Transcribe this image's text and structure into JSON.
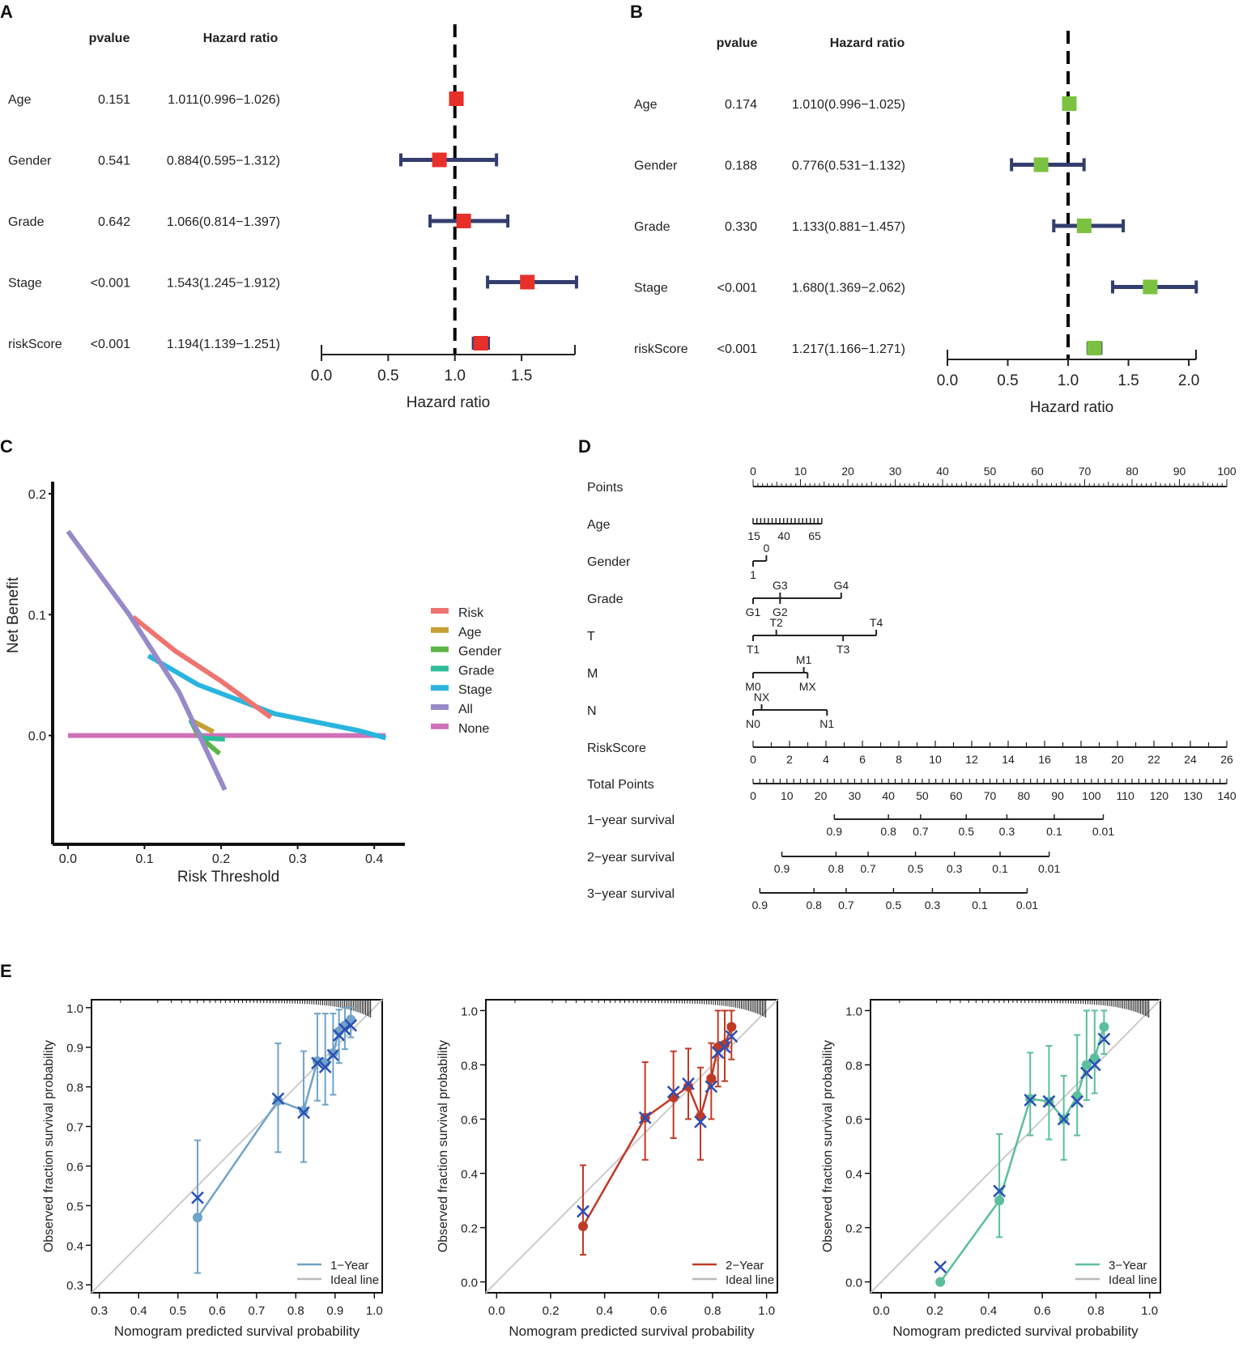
{
  "panels": {
    "a": "A",
    "b": "B",
    "c": "C",
    "d": "D",
    "e": "E"
  },
  "colors": {
    "errorbar": "#333d6e",
    "forest_a": "#e8302b",
    "forest_b": "#7cc242",
    "ideal": "#cccccc",
    "refline": "#000000"
  },
  "forest_headers": {
    "pvalue": "pvalue",
    "hr": "Hazard ratio"
  },
  "chart_data": [
    {
      "id": "A",
      "type": "forest",
      "xlabel": "Hazard ratio",
      "xlim": [
        0,
        1.9
      ],
      "xticks": [
        0.0,
        0.5,
        1.0,
        1.5
      ],
      "xtick_labels": [
        "0.0",
        "0.5",
        "1.0",
        "1.5"
      ],
      "rows": [
        {
          "label": "Age",
          "pvalue": "0.151",
          "hr_text": "1.011(0.996−1.026)",
          "hr": 1.011,
          "lo": 0.996,
          "hi": 1.026
        },
        {
          "label": "Gender",
          "pvalue": "0.541",
          "hr_text": "0.884(0.595−1.312)",
          "hr": 0.884,
          "lo": 0.595,
          "hi": 1.312
        },
        {
          "label": "Grade",
          "pvalue": "0.642",
          "hr_text": "1.066(0.814−1.397)",
          "hr": 1.066,
          "lo": 0.814,
          "hi": 1.397
        },
        {
          "label": "Stage",
          "pvalue": "<0.001",
          "hr_text": "1.543(1.245−1.912)",
          "hr": 1.543,
          "lo": 1.245,
          "hi": 1.912
        },
        {
          "label": "riskScore",
          "pvalue": "<0.001",
          "hr_text": "1.194(1.139−1.251)",
          "hr": 1.194,
          "lo": 1.139,
          "hi": 1.251
        }
      ]
    },
    {
      "id": "B",
      "type": "forest",
      "xlabel": "Hazard ratio",
      "xlim": [
        0,
        2.06
      ],
      "xticks": [
        0.0,
        0.5,
        1.0,
        1.5,
        2.0
      ],
      "xtick_labels": [
        "0.0",
        "0.5",
        "1.0",
        "1.5",
        "2.0"
      ],
      "rows": [
        {
          "label": "Age",
          "pvalue": "0.174",
          "hr_text": "1.010(0.996−1.025)",
          "hr": 1.01,
          "lo": 0.996,
          "hi": 1.025
        },
        {
          "label": "Gender",
          "pvalue": "0.188",
          "hr_text": "0.776(0.531−1.132)",
          "hr": 0.776,
          "lo": 0.531,
          "hi": 1.132
        },
        {
          "label": "Grade",
          "pvalue": "0.330",
          "hr_text": "1.133(0.881−1.457)",
          "hr": 1.133,
          "lo": 0.881,
          "hi": 1.457
        },
        {
          "label": "Stage",
          "pvalue": "<0.001",
          "hr_text": "1.680(1.369−2.062)",
          "hr": 1.68,
          "lo": 1.369,
          "hi": 2.062
        },
        {
          "label": "riskScore",
          "pvalue": "<0.001",
          "hr_text": "1.217(1.166−1.271)",
          "hr": 1.217,
          "lo": 1.166,
          "hi": 1.271
        }
      ]
    },
    {
      "id": "C",
      "type": "line",
      "title": "",
      "xlabel": "Risk Threshold",
      "ylabel": "Net Benefit",
      "xlim": [
        -0.02,
        0.44
      ],
      "ylim": [
        -0.09,
        0.21
      ],
      "xticks": [
        0.0,
        0.1,
        0.2,
        0.3,
        0.4
      ],
      "xtick_labels": [
        "0.0",
        "0.1",
        "0.2",
        "0.3",
        "0.4"
      ],
      "yticks": [
        0.0,
        0.1,
        0.2
      ],
      "ytick_labels": [
        "0.0",
        "0.1",
        "0.2"
      ],
      "series": [
        {
          "name": "Risk",
          "color": "#ef7470",
          "points": [
            [
              0.085,
              0.098
            ],
            [
              0.14,
              0.07
            ],
            [
              0.2,
              0.045
            ],
            [
              0.265,
              0.015
            ]
          ]
        },
        {
          "name": "Age",
          "color": "#c6a135",
          "points": [
            [
              0.16,
              0.013
            ],
            [
              0.19,
              0.003
            ]
          ]
        },
        {
          "name": "Gender",
          "color": "#5cb545",
          "points": [
            [
              0.16,
              0.013
            ],
            [
              0.17,
              0.0
            ],
            [
              0.198,
              -0.015
            ]
          ]
        },
        {
          "name": "Grade",
          "color": "#2dbd99",
          "points": [
            [
              0.16,
              0.013
            ],
            [
              0.175,
              -0.002
            ],
            [
              0.205,
              -0.003
            ]
          ]
        },
        {
          "name": "Stage",
          "color": "#29b5df",
          "points": [
            [
              0.105,
              0.066
            ],
            [
              0.17,
              0.042
            ],
            [
              0.27,
              0.018
            ],
            [
              0.38,
              0.004
            ],
            [
              0.415,
              -0.002
            ]
          ]
        },
        {
          "name": "All",
          "color": "#9889c8",
          "points": [
            [
              0.0,
              0.169
            ],
            [
              0.08,
              0.1
            ],
            [
              0.145,
              0.036
            ],
            [
              0.205,
              -0.045
            ]
          ]
        },
        {
          "name": "None",
          "color": "#cf72b8",
          "points": [
            [
              0.0,
              0.0
            ],
            [
              0.415,
              0.0
            ]
          ]
        }
      ]
    },
    {
      "id": "D",
      "type": "nomogram",
      "rows": [
        {
          "label": "Points",
          "scale_min": 0,
          "scale_max": 100,
          "labels": [
            "0",
            "10",
            "20",
            "30",
            "40",
            "50",
            "60",
            "70",
            "80",
            "90",
            "100"
          ],
          "values": [
            0,
            10,
            20,
            30,
            40,
            50,
            60,
            70,
            80,
            90,
            100
          ]
        },
        {
          "label": "Age",
          "labels": [
            "15",
            "40",
            "65"
          ],
          "values": [
            0,
            6.5,
            13
          ],
          "range": [
            0,
            14.5
          ]
        },
        {
          "label": "Gender",
          "labels": [
            "0",
            "1"
          ],
          "values": [
            2.8,
            0
          ],
          "range": [
            0,
            2.8
          ]
        },
        {
          "label": "Grade",
          "labels": [
            "G3",
            "G4",
            "G1",
            "G2"
          ],
          "values": [
            5.7,
            18.6,
            0,
            5.7
          ],
          "range": [
            0,
            18.6
          ]
        },
        {
          "label": "T",
          "labels": [
            "T2",
            "T4",
            "T1",
            "T3"
          ],
          "values": [
            4.9,
            26,
            0,
            19
          ],
          "range": [
            0,
            26
          ]
        },
        {
          "label": "M",
          "labels": [
            "M1",
            "M0",
            "MX"
          ],
          "values": [
            10.7,
            0,
            11.5
          ],
          "range": [
            0,
            11.5
          ]
        },
        {
          "label": "N",
          "labels": [
            "NX",
            "N0",
            "N1"
          ],
          "values": [
            1.8,
            0,
            15.6
          ],
          "range": [
            0,
            15.6
          ]
        },
        {
          "label": "RiskScore",
          "labels": [
            "0",
            "2",
            "4",
            "6",
            "8",
            "10",
            "12",
            "14",
            "16",
            "18",
            "20",
            "22",
            "24",
            "26"
          ],
          "scale_min": 0,
          "scale_max": 26
        },
        {
          "label": "Total Points",
          "labels": [
            "0",
            "10",
            "20",
            "30",
            "40",
            "50",
            "60",
            "70",
            "80",
            "90",
            "100",
            "110",
            "120",
            "130",
            "140"
          ],
          "scale_min": 0,
          "scale_max": 140
        },
        {
          "label": "1−year survival",
          "labels": [
            "0.9",
            "0.8",
            "0.7",
            "0.5",
            "0.3",
            "0.1",
            "0.01"
          ],
          "positions_total": [
            24,
            40,
            49.5,
            63,
            75,
            89,
            103.5
          ]
        },
        {
          "label": "2−year survival",
          "labels": [
            "0.9",
            "0.8",
            "0.7",
            "0.5",
            "0.3",
            "0.1",
            "0.01"
          ],
          "positions_total": [
            8.5,
            24.5,
            34,
            48,
            59.5,
            73,
            87.5
          ]
        },
        {
          "label": "3−year survival",
          "labels": [
            "0.9",
            "0.8",
            "0.7",
            "0.5",
            "0.3",
            "0.1",
            "0.01"
          ],
          "positions_total": [
            2,
            18,
            27.5,
            41.5,
            53,
            67,
            81
          ]
        }
      ]
    },
    {
      "id": "E1",
      "type": "calibration",
      "legend": "1−Year",
      "ideal_label": "Ideal line",
      "color": "#6fa3c8",
      "xlabel": "Nomogram predicted survival probability",
      "ylabel": "Observed fraction survival probability",
      "xlim": [
        0.28,
        1.02
      ],
      "ylim": [
        0.28,
        1.02
      ],
      "xticks": [
        0.3,
        0.4,
        0.5,
        0.6,
        0.7,
        0.8,
        0.9,
        1.0
      ],
      "xtick_labels": [
        "0.3",
        "0.4",
        "0.5",
        "0.6",
        "0.7",
        "0.8",
        "0.9",
        "1.0"
      ],
      "yticks": [
        0.3,
        0.4,
        0.5,
        0.6,
        0.7,
        0.8,
        0.9,
        1.0
      ],
      "ytick_labels": [
        "0.3",
        "0.4",
        "0.5",
        "0.6",
        "0.7",
        "0.8",
        "0.9",
        "1.0"
      ],
      "points": [
        {
          "x": 0.55,
          "y": 0.47,
          "lo": 0.33,
          "hi": 0.665,
          "xc": 0.52
        },
        {
          "x": 0.755,
          "y": 0.765,
          "lo": 0.635,
          "hi": 0.91,
          "xc": 0.77
        },
        {
          "x": 0.82,
          "y": 0.74,
          "lo": 0.61,
          "hi": 0.89,
          "xc": 0.735
        },
        {
          "x": 0.855,
          "y": 0.865,
          "lo": 0.765,
          "hi": 0.985,
          "xc": 0.86
        },
        {
          "x": 0.875,
          "y": 0.86,
          "lo": 0.755,
          "hi": 0.985,
          "xc": 0.85
        },
        {
          "x": 0.895,
          "y": 0.885,
          "lo": 0.78,
          "hi": 0.985,
          "xc": 0.88
        },
        {
          "x": 0.91,
          "y": 0.94,
          "lo": 0.86,
          "hi": 0.995,
          "xc": 0.93
        },
        {
          "x": 0.925,
          "y": 0.955,
          "lo": 0.895,
          "hi": 1.0,
          "xc": 0.945
        },
        {
          "x": 0.94,
          "y": 0.97,
          "lo": 0.925,
          "hi": 1.0,
          "xc": 0.955
        }
      ]
    },
    {
      "id": "E2",
      "type": "calibration",
      "legend": "2−Year",
      "ideal_label": "Ideal line",
      "color": "#bf3a26",
      "xlabel": "Nomogram predicted survival probability",
      "ylabel": "Observed fraction survival probability",
      "xlim": [
        -0.04,
        1.04
      ],
      "ylim": [
        -0.04,
        1.04
      ],
      "xticks": [
        0.0,
        0.2,
        0.4,
        0.6,
        0.8,
        1.0
      ],
      "xtick_labels": [
        "0.0",
        "0.2",
        "0.4",
        "0.6",
        "0.8",
        "1.0"
      ],
      "yticks": [
        0.0,
        0.2,
        0.4,
        0.6,
        0.8,
        1.0
      ],
      "ytick_labels": [
        "0.0",
        "0.2",
        "0.4",
        "0.6",
        "0.8",
        "1.0"
      ],
      "points": [
        {
          "x": 0.32,
          "y": 0.205,
          "lo": 0.1,
          "hi": 0.43,
          "xc": 0.26
        },
        {
          "x": 0.55,
          "y": 0.605,
          "lo": 0.45,
          "hi": 0.81,
          "xc": 0.605
        },
        {
          "x": 0.655,
          "y": 0.68,
          "lo": 0.53,
          "hi": 0.85,
          "xc": 0.7
        },
        {
          "x": 0.71,
          "y": 0.72,
          "lo": 0.6,
          "hi": 0.86,
          "xc": 0.73
        },
        {
          "x": 0.755,
          "y": 0.61,
          "lo": 0.45,
          "hi": 0.79,
          "xc": 0.59
        },
        {
          "x": 0.795,
          "y": 0.75,
          "lo": 0.6,
          "hi": 0.88,
          "xc": 0.72
        },
        {
          "x": 0.82,
          "y": 0.865,
          "lo": 0.72,
          "hi": 1.0,
          "xc": 0.845
        },
        {
          "x": 0.845,
          "y": 0.875,
          "lo": 0.74,
          "hi": 1.0,
          "xc": 0.865
        },
        {
          "x": 0.87,
          "y": 0.94,
          "lo": 0.82,
          "hi": 1.0,
          "xc": 0.905
        }
      ]
    },
    {
      "id": "E3",
      "type": "calibration",
      "legend": "3−Year",
      "ideal_label": "Ideal line",
      "color": "#5bbf9a",
      "xlabel": "Nomogram predicted survival probability",
      "ylabel": "Observed fraction survival probability",
      "xlim": [
        -0.04,
        1.04
      ],
      "ylim": [
        -0.04,
        1.04
      ],
      "xticks": [
        0.0,
        0.2,
        0.4,
        0.6,
        0.8,
        1.0
      ],
      "xtick_labels": [
        "0.0",
        "0.2",
        "0.4",
        "0.6",
        "0.8",
        "1.0"
      ],
      "yticks": [
        0.0,
        0.2,
        0.4,
        0.6,
        0.8,
        1.0
      ],
      "ytick_labels": [
        "0.0",
        "0.2",
        "0.4",
        "0.6",
        "0.8",
        "1.0"
      ],
      "points": [
        {
          "x": 0.22,
          "y": 0.0,
          "lo": 0.0,
          "hi": 0.0,
          "xc": 0.055
        },
        {
          "x": 0.44,
          "y": 0.3,
          "lo": 0.165,
          "hi": 0.545,
          "xc": 0.335
        },
        {
          "x": 0.555,
          "y": 0.675,
          "lo": 0.54,
          "hi": 0.845,
          "xc": 0.67
        },
        {
          "x": 0.625,
          "y": 0.665,
          "lo": 0.525,
          "hi": 0.87,
          "xc": 0.665
        },
        {
          "x": 0.68,
          "y": 0.6,
          "lo": 0.45,
          "hi": 0.76,
          "xc": 0.6
        },
        {
          "x": 0.73,
          "y": 0.685,
          "lo": 0.54,
          "hi": 0.91,
          "xc": 0.665
        },
        {
          "x": 0.765,
          "y": 0.8,
          "lo": 0.67,
          "hi": 1.0,
          "xc": 0.77
        },
        {
          "x": 0.795,
          "y": 0.825,
          "lo": 0.695,
          "hi": 1.0,
          "xc": 0.8
        },
        {
          "x": 0.83,
          "y": 0.94,
          "lo": 0.84,
          "hi": 1.0,
          "xc": 0.895
        }
      ]
    }
  ]
}
